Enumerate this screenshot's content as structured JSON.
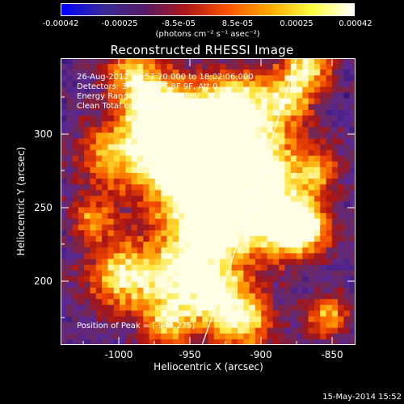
{
  "colorbar": {
    "ticks": [
      "-0.00042",
      "-0.00025",
      "-8.5e-05",
      "8.5e-05",
      "0.00025",
      "0.00042"
    ],
    "unit": "(photons cm⁻² s⁻¹ asec⁻²)",
    "colors": [
      "#0000ff",
      "#3a2a99",
      "#551a66",
      "#b01818",
      "#ff5500",
      "#ffaa00",
      "#ffff40",
      "#ffffff"
    ]
  },
  "title": "Reconstructed RHESSI Image",
  "info": {
    "time": "26-Aug-2012 17:57:20.000 to 18:02:06.000",
    "detectors": "Detectors: 3F 5F 6F 7F 8F 9F, Att 0",
    "energy": "Energy Range: 12.0 - 25.0 keV",
    "clean": "Clean     Total counts: 8.77E+03"
  },
  "peak": "Position of Peak = [-946,275]",
  "axes": {
    "xlabel": "Heliocentric X (arcsec)",
    "ylabel": "Heliocentric Y (arcsec)",
    "xticks": [
      "-1000",
      "-950",
      "-900",
      "-850"
    ],
    "yticks": [
      "300",
      "250",
      "200"
    ]
  },
  "footer_date": "15-May-2014 15:52"
}
